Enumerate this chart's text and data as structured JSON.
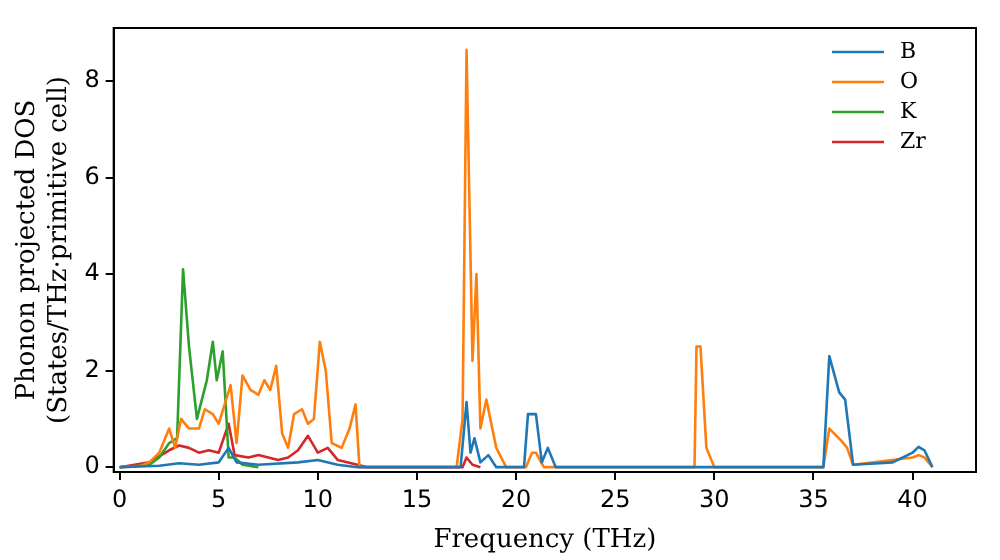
{
  "chart_data": {
    "type": "line",
    "xlabel": "Frequency (THz)",
    "ylabel": "Phonon projected DOS\n(States/THz·primitive cell)",
    "xlim": [
      -0.3,
      43.2
    ],
    "ylim": [
      -0.1,
      9.1
    ],
    "xticks": [
      0,
      5,
      10,
      15,
      20,
      25,
      30,
      35,
      40
    ],
    "yticks": [
      0,
      2,
      4,
      6,
      8
    ],
    "grid": false,
    "legend": "top right",
    "marker": "none",
    "line_style": "solid",
    "series": [
      {
        "name": "B",
        "color": "#1f77b4",
        "x": [
          0,
          2,
          3,
          4,
          5,
          5.5,
          5.9,
          7,
          9,
          10,
          11,
          12,
          17.2,
          17.5,
          17.7,
          17.9,
          18.2,
          18.6,
          19,
          20.4,
          20.6,
          21,
          21.3,
          21.6,
          22,
          35.5,
          35.8,
          36.3,
          36.6,
          37,
          39,
          40,
          40.3,
          40.6,
          41
        ],
        "values": [
          0,
          0.03,
          0.08,
          0.05,
          0.1,
          0.4,
          0.1,
          0.05,
          0.1,
          0.15,
          0.05,
          0,
          0,
          1.35,
          0.3,
          0.6,
          0.1,
          0.25,
          0,
          0,
          1.1,
          1.1,
          0.1,
          0.4,
          0,
          0,
          2.3,
          1.55,
          1.4,
          0.05,
          0.1,
          0.3,
          0.42,
          0.35,
          0
        ]
      },
      {
        "name": "O",
        "color": "#ff7f0e",
        "x": [
          0,
          1,
          1.5,
          2,
          2.5,
          2.8,
          3.1,
          3.5,
          4,
          4.3,
          4.7,
          5,
          5.3,
          5.6,
          5.9,
          6.2,
          6.6,
          7,
          7.3,
          7.6,
          7.9,
          8.2,
          8.5,
          8.8,
          9.2,
          9.5,
          9.8,
          10.1,
          10.4,
          10.7,
          11.2,
          11.6,
          11.9,
          12.1,
          17,
          17.3,
          17.5,
          17.8,
          18,
          18.2,
          18.5,
          19,
          19.5,
          20.5,
          20.8,
          21,
          21.4,
          29,
          29.1,
          29.3,
          29.6,
          30,
          35.5,
          35.8,
          36.4,
          36.7,
          37,
          40,
          40.3,
          40.6,
          41
        ],
        "values": [
          0,
          0.02,
          0.1,
          0.3,
          0.8,
          0.4,
          1,
          0.8,
          0.8,
          1.2,
          1.1,
          0.9,
          1.3,
          1.7,
          0.5,
          1.9,
          1.6,
          1.5,
          1.8,
          1.6,
          2.1,
          0.7,
          0.4,
          1.1,
          1.2,
          0.9,
          1,
          2.6,
          2,
          0.5,
          0.4,
          0.8,
          1.3,
          0,
          0,
          1,
          8.65,
          2.2,
          4,
          0.8,
          1.4,
          0.4,
          0,
          0,
          0.3,
          0.3,
          0,
          0,
          2.5,
          2.5,
          0.4,
          0,
          0,
          0.8,
          0.55,
          0.4,
          0.05,
          0.2,
          0.25,
          0.2,
          0
        ]
      },
      {
        "name": "K",
        "color": "#2ca02c",
        "x": [
          0,
          1.5,
          2,
          2.5,
          2.9,
          3.2,
          3.5,
          3.9,
          4.4,
          4.7,
          4.9,
          5.2,
          5.5,
          5.8,
          6.2,
          7
        ],
        "values": [
          0,
          0.05,
          0.2,
          0.5,
          0.6,
          4.1,
          2.5,
          1,
          1.8,
          2.6,
          1.8,
          2.4,
          0.2,
          0.2,
          0.05,
          0
        ]
      },
      {
        "name": "Zr",
        "color": "#d62728",
        "x": [
          0,
          1.5,
          2.5,
          3,
          3.5,
          4,
          4.5,
          5,
          5.5,
          5.8,
          6.5,
          7,
          7.5,
          8,
          8.5,
          9,
          9.5,
          10,
          10.5,
          11,
          12,
          12.5,
          17.3,
          17.5,
          17.8,
          18.2
        ],
        "values": [
          0,
          0.1,
          0.35,
          0.45,
          0.4,
          0.3,
          0.35,
          0.3,
          0.9,
          0.25,
          0.2,
          0.25,
          0.2,
          0.15,
          0.2,
          0.35,
          0.65,
          0.3,
          0.4,
          0.15,
          0.05,
          0,
          0,
          0.2,
          0.05,
          0
        ]
      }
    ]
  }
}
